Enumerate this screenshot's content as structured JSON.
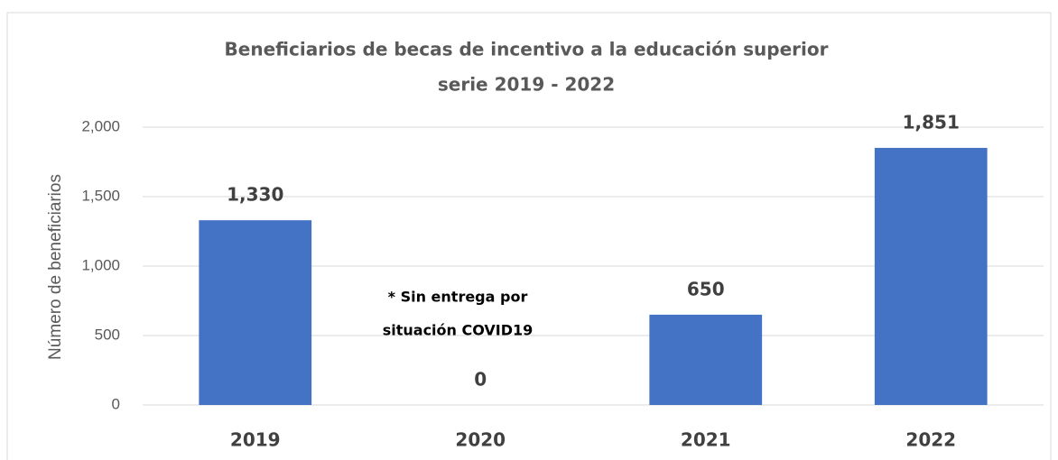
{
  "chart_data": {
    "type": "bar",
    "title": [
      "Beneficiarios de becas de incentivo a la educación superior",
      "serie 2019 - 2022"
    ],
    "y_label": "Número de beneficiarios",
    "categories": [
      "2019",
      "2020",
      "2021",
      "2022"
    ],
    "values": [
      1330,
      0,
      650,
      1851
    ],
    "value_labels": [
      "1,330",
      "0",
      "650",
      "1,851"
    ],
    "color": "#4472c4",
    "ylim": [
      0,
      2000
    ],
    "yticks": [
      0,
      500,
      {
        "value": 1000,
        "label": "1,000"
      },
      {
        "value": 1500,
        "label": "1,500"
      },
      {
        "value": 2000,
        "label": "2,000"
      }
    ],
    "grid": true,
    "annotation": [
      "* Sin entrega por",
      "situación COVID19"
    ]
  }
}
